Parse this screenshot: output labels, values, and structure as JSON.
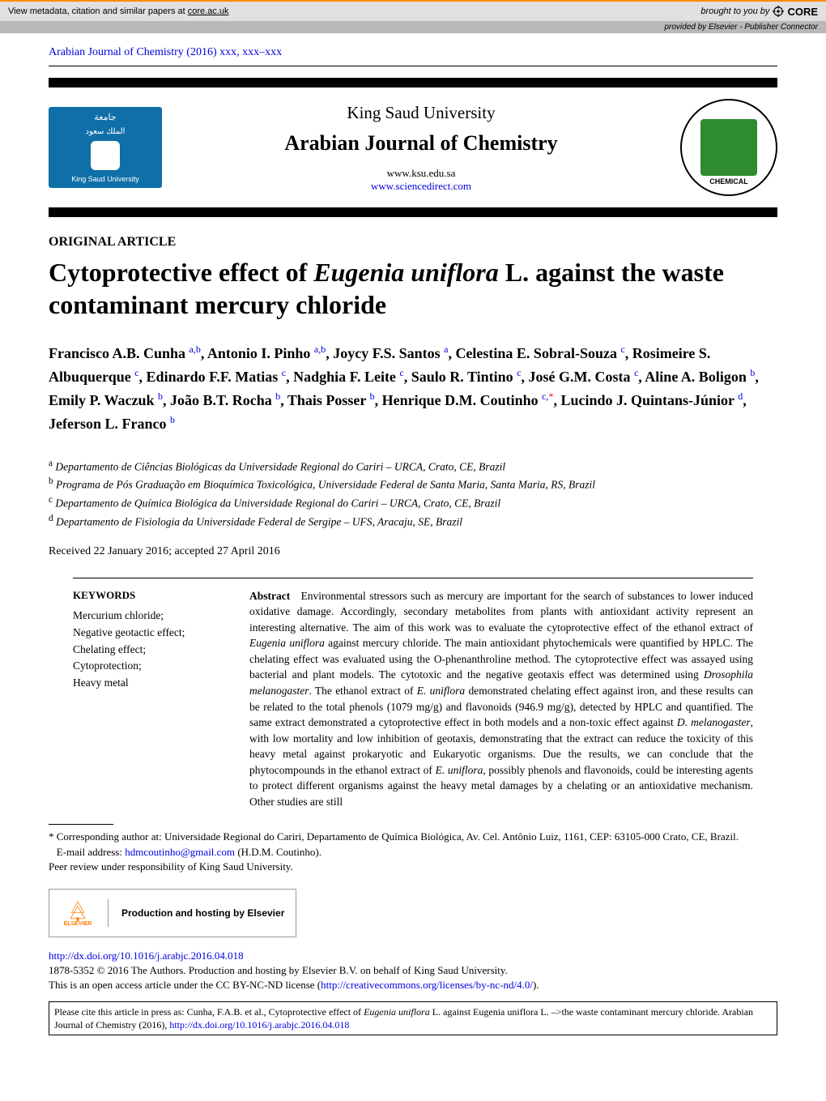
{
  "core_bar": {
    "left_prefix": "View metadata, citation and similar papers at ",
    "left_link": "core.ac.uk",
    "right_prefix": "brought to you by ",
    "logo": "CORE"
  },
  "provided_bar": {
    "prefix": "provided by ",
    "provider": "Elsevier - Publisher Connector"
  },
  "running_head": "Arabian Journal of Chemistry (2016) xxx, xxx–xxx",
  "masthead": {
    "left_caption": "King Saud University",
    "university": "King Saud University",
    "journal": "Arabian Journal of Chemistry",
    "url1": "www.ksu.edu.sa",
    "url2": "www.sciencedirect.com",
    "right_label": "CHEMICAL"
  },
  "article_type": "ORIGINAL ARTICLE",
  "title": {
    "pre": "Cytoprotective effect of ",
    "species": "Eugenia uniflora",
    "post": " L. against the waste contaminant mercury chloride"
  },
  "authors_html": "Francisco A.B. Cunha <sup>a,b</sup>, Antonio I. Pinho <sup>a,b</sup>, Joycy F.S. Santos <sup>a</sup>, Celestina E. Sobral-Souza <sup>c</sup>, Rosimeire S. Albuquerque <sup>c</sup>, Edinardo F.F. Matias <sup>c</sup>, Nadghia F. Leite <sup>c</sup>, Saulo R. Tintino <sup>c</sup>, José G.M. Costa <sup>c</sup>, Aline A. Boligon <sup>b</sup>, Emily P. Waczuk <sup>b</sup>, João B.T. Rocha <sup>b</sup>, Thais Posser <sup>b</sup>, Henrique D.M. Coutinho <sup>c,</sup><sup class='star'>*</sup>, Lucindo J. Quintans-Júnior <sup>d</sup>, Jeferson L. Franco <sup>b</sup>",
  "affiliations": [
    {
      "sup": "a",
      "text": "Departamento de Ciências Biológicas da Universidade Regional do Cariri – URCA, Crato, CE, Brazil"
    },
    {
      "sup": "b",
      "text": "Programa de Pós Graduação em Bioquímica Toxicológica, Universidade Federal de Santa Maria, Santa Maria, RS, Brazil"
    },
    {
      "sup": "c",
      "text": "Departamento de Química Biológica da Universidade Regional do Cariri – URCA, Crato, CE, Brazil"
    },
    {
      "sup": "d",
      "text": "Departamento de Fisiologia da Universidade Federal de Sergipe – UFS, Aracaju, SE, Brazil"
    }
  ],
  "dates": "Received 22 January 2016; accepted 27 April 2016",
  "keywords": {
    "heading": "KEYWORDS",
    "items": [
      "Mercurium chloride;",
      "Negative geotactic effect;",
      "Chelating effect;",
      "Cytoprotection;",
      "Heavy metal"
    ]
  },
  "abstract": {
    "heading": "Abstract",
    "text_html": "Environmental stressors such as mercury are important for the search of substances to lower induced oxidative damage. Accordingly, secondary metabolites from plants with antioxidant activity represent an interesting alternative. The aim of this work was to evaluate the cytoprotective effect of the ethanol extract of <span class='species'>Eugenia uniflora</span> against mercury chloride. The main antioxidant phytochemicals were quantified by HPLC. The chelating effect was evaluated using the O-phenanthroline method. The cytoprotective effect was assayed using bacterial and plant models. The cytotoxic and the negative geotaxis effect was determined using <span class='species'>Drosophila melanogaster</span>. The ethanol extract of <span class='species'>E. uniflora</span> demonstrated chelating effect against iron, and these results can be related to the total phenols (1079 mg/g) and flavonoids (946.9 mg/g), detected by HPLC and quantified. The same extract demonstrated a cytoprotective effect in both models and a non-toxic effect against <span class='species'>D. melanogaster</span>, with low mortality and low inhibition of geotaxis, demonstrating that the extract can reduce the toxicity of this heavy metal against prokaryotic and Eukaryotic organisms. Due the results, we can conclude that the phytocompounds in the ethanol extract of <span class='species'>E. uniflora</span>, possibly phenols and flavonoids, could be interesting agents to protect different organisms against the heavy metal damages by a chelating or an antioxidative mechanism. Other studies are still"
  },
  "footnotes": {
    "corresponding": "* Corresponding author at: Universidade Regional do Cariri, Departamento de Química Biológica, Av. Cel. Antônio Luiz, 1161, CEP: 63105-000 Crato, CE, Brazil.",
    "email_label": "E-mail address: ",
    "email": "hdmcoutinho@gmail.com",
    "email_author": " (H.D.M. Coutinho).",
    "peer_review": "Peer review under responsibility of King Saud University."
  },
  "hosting": {
    "publisher": "ELSEVIER",
    "text": "Production and hosting by Elsevier"
  },
  "license": {
    "doi": "http://dx.doi.org/10.1016/j.arabjc.2016.04.018",
    "line2": "1878-5352 © 2016 The Authors. Production and hosting by Elsevier B.V. on behalf of King Saud University.",
    "line3_pre": "This is an open access article under the CC BY-NC-ND license (",
    "line3_link": "http://creativecommons.org/licenses/by-nc-nd/4.0/",
    "line3_post": ")."
  },
  "cite_box": {
    "pre": "Please cite this article in press as: Cunha, F.A.B. et al., Cytoprotective effect of ",
    "species1": "Eugenia uniflora",
    "mid": " L. against Eugenia uniflora L. –>the waste contaminant mercury chloride. Arabian Journal of Chemistry (2016), ",
    "link": "http://dx.doi.org/10.1016/j.arabjc.2016.04.018"
  }
}
